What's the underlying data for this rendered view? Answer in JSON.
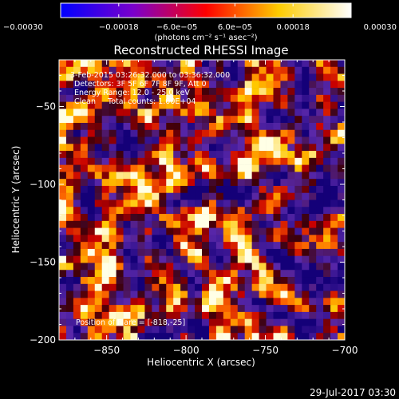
{
  "chart_data": {
    "type": "heatmap",
    "title": "Reconstructed RHESSI Image",
    "xlabel": "Heliocentric X (arcsec)",
    "ylabel": "Heliocentric Y (arcsec)",
    "xlim": [
      -880,
      -700
    ],
    "ylim": [
      -200,
      -20
    ],
    "x_ticks": [
      -850,
      -800,
      -750,
      -700
    ],
    "x_tick_labels": [
      "−850",
      "−800",
      "−750",
      "−700"
    ],
    "y_ticks": [
      -50,
      -100,
      -150,
      -200
    ],
    "y_tick_labels": [
      "−50",
      "−100",
      "−150",
      "−200"
    ],
    "colorbar": {
      "range": [
        -0.0003,
        0.0003
      ],
      "tick_labels": [
        "−0.00030",
        "−0.00018",
        "−6.0e−05",
        "6.0e−05",
        "0.00018",
        "0.00030"
      ],
      "unit_label": "(photons cm⁻² s⁻¹ asec⁻²)",
      "colors": [
        "#0000ff",
        "#7a00cc",
        "#ff0000",
        "#ffcc00",
        "#ffffff"
      ]
    },
    "annotations": [
      "3-Feb-2015 03:26:32.000 to 03:36:32.000",
      "Detectors: 3F 5F 6F 7F 8F 9F, Att 0",
      "Energy Range: 12.0 - 25.0 keV",
      "Clean     Total counts: 1.00E+04",
      "Position of Flare = [-818,-25]"
    ],
    "grid": false
  },
  "footer": {
    "timestamp": "29-Jul-2017 03:30"
  }
}
